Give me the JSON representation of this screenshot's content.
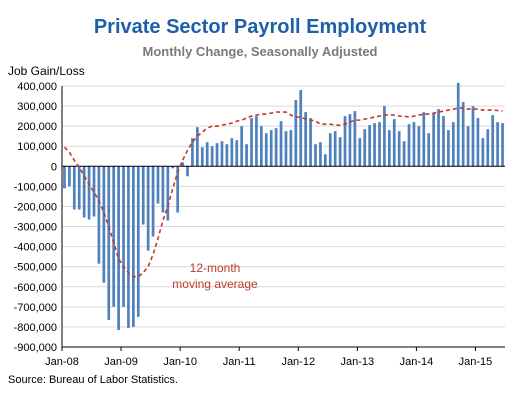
{
  "chart_data": {
    "type": "bar",
    "title": "Private Sector Payroll Employment",
    "subtitle": "Monthly Change, Seasonally Adjusted",
    "ylabel": "Job Gain/Loss",
    "source": "Source: Bureau of Labor Statistics.",
    "ylim": [
      -900000,
      400000
    ],
    "yticks": [
      400000,
      300000,
      200000,
      100000,
      0,
      -100000,
      -200000,
      -300000,
      -400000,
      -500000,
      -600000,
      -700000,
      -800000,
      -900000
    ],
    "ytick_labels": [
      "400,000",
      "300,000",
      "200,000",
      "100,000",
      "0",
      "-100,000",
      "-200,000",
      "-300,000",
      "-400,000",
      "-500,000",
      "-600,000",
      "-700,000",
      "-800,000",
      "-900,000"
    ],
    "xtick_labels": [
      "Jan-08",
      "Jan-09",
      "Jan-10",
      "Jan-11",
      "Jan-12",
      "Jan-13",
      "Jan-14",
      "Jan-15"
    ],
    "xtick_index": [
      0,
      12,
      24,
      36,
      48,
      60,
      72,
      84
    ],
    "bar_color": "#4f81bd",
    "ma_color": "#c0392b",
    "annotation": {
      "line1": "12-month",
      "line2": "moving average"
    },
    "months": [
      "Jan-08",
      "Feb-08",
      "Mar-08",
      "Apr-08",
      "May-08",
      "Jun-08",
      "Jul-08",
      "Aug-08",
      "Sep-08",
      "Oct-08",
      "Nov-08",
      "Dec-08",
      "Jan-09",
      "Feb-09",
      "Mar-09",
      "Apr-09",
      "May-09",
      "Jun-09",
      "Jul-09",
      "Aug-09",
      "Sep-09",
      "Oct-09",
      "Nov-09",
      "Dec-09",
      "Jan-10",
      "Feb-10",
      "Mar-10",
      "Apr-10",
      "May-10",
      "Jun-10",
      "Jul-10",
      "Aug-10",
      "Sep-10",
      "Oct-10",
      "Nov-10",
      "Dec-10",
      "Jan-11",
      "Feb-11",
      "Mar-11",
      "Apr-11",
      "May-11",
      "Jun-11",
      "Jul-11",
      "Aug-11",
      "Sep-11",
      "Oct-11",
      "Nov-11",
      "Dec-11",
      "Jan-12",
      "Feb-12",
      "Mar-12",
      "Apr-12",
      "May-12",
      "Jun-12",
      "Jul-12",
      "Aug-12",
      "Sep-12",
      "Oct-12",
      "Nov-12",
      "Dec-12",
      "Jan-13",
      "Feb-13",
      "Mar-13",
      "Apr-13",
      "May-13",
      "Jun-13",
      "Jul-13",
      "Aug-13",
      "Sep-13",
      "Oct-13",
      "Nov-13",
      "Dec-13",
      "Jan-14",
      "Feb-14",
      "Mar-14",
      "Apr-14",
      "May-14",
      "Jun-14",
      "Jul-14",
      "Aug-14",
      "Sep-14",
      "Oct-14",
      "Nov-14",
      "Dec-14",
      "Jan-15",
      "Feb-15",
      "Mar-15",
      "Apr-15",
      "May-15",
      "Jun-15"
    ],
    "series": [
      {
        "name": "Monthly change",
        "values": [
          -110000,
          -100000,
          -215000,
          -215000,
          -255000,
          -265000,
          -250000,
          -485000,
          -580000,
          -765000,
          -700000,
          -815000,
          -700000,
          -805000,
          -800000,
          -750000,
          -290000,
          -420000,
          -350000,
          -185000,
          -230000,
          -270000,
          -10000,
          -230000,
          20000,
          -50000,
          140000,
          195000,
          95000,
          120000,
          100000,
          115000,
          125000,
          110000,
          140000,
          130000,
          200000,
          110000,
          240000,
          250000,
          200000,
          165000,
          180000,
          190000,
          225000,
          175000,
          180000,
          330000,
          380000,
          270000,
          240000,
          110000,
          120000,
          60000,
          165000,
          175000,
          145000,
          250000,
          260000,
          275000,
          140000,
          185000,
          205000,
          215000,
          220000,
          300000,
          180000,
          235000,
          175000,
          125000,
          210000,
          220000,
          200000,
          270000,
          165000,
          265000,
          285000,
          250000,
          180000,
          220000,
          415000,
          320000,
          200000,
          300000,
          240000,
          140000,
          185000,
          255000,
          220000,
          215000
        ]
      },
      {
        "name": "12-month moving average",
        "values": [
          95000,
          70000,
          30000,
          -5000,
          -45000,
          -90000,
          -130000,
          -170000,
          -230000,
          -300000,
          -380000,
          -460000,
          -500000,
          -530000,
          -550000,
          -550000,
          -530000,
          -500000,
          -440000,
          -360000,
          -270000,
          -200000,
          -110000,
          -30000,
          30000,
          80000,
          120000,
          150000,
          170000,
          190000,
          200000,
          200000,
          205000,
          210000,
          215000,
          225000,
          230000,
          240000,
          250000,
          255000,
          260000,
          260000,
          265000,
          270000,
          270000,
          270000,
          255000,
          245000,
          245000,
          235000,
          230000,
          225000,
          210000,
          210000,
          210000,
          205000,
          205000,
          210000,
          220000,
          230000,
          230000,
          235000,
          240000,
          245000,
          250000,
          255000,
          255000,
          255000,
          250000,
          250000,
          245000,
          250000,
          255000,
          260000,
          260000,
          265000,
          270000,
          275000,
          280000,
          285000,
          290000,
          290000,
          285000,
          285000,
          285000,
          280000,
          280000,
          280000,
          278000,
          275000
        ]
      }
    ]
  }
}
